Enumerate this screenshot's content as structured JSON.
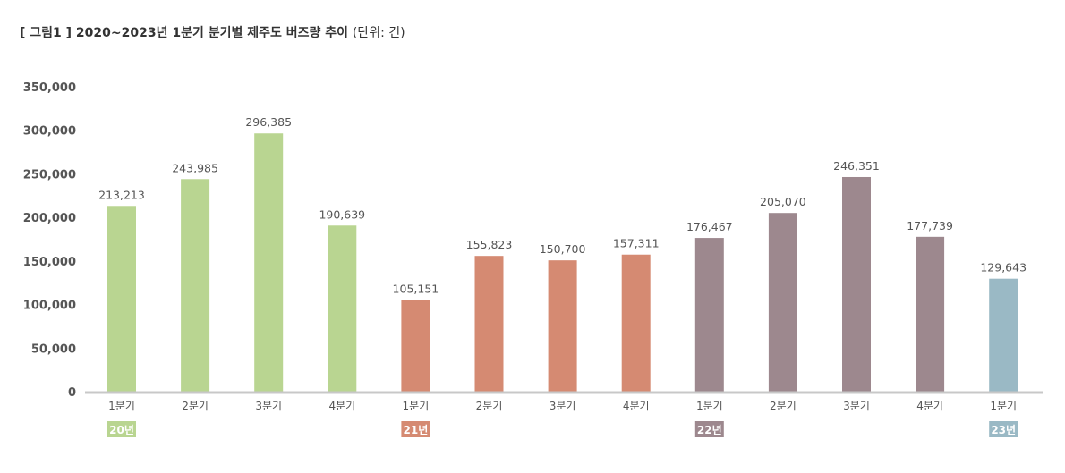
{
  "title": {
    "main": "[ 그림1 ] 2020~2023년 1분기 분기별 제주도 버즈량 추이",
    "unit": "(단위: 건)"
  },
  "colors": {
    "20년": "#b9d591",
    "21년": "#d58a72",
    "22년": "#9d888e",
    "23년": "#9ab9c5",
    "axis": "#c8c8c8"
  },
  "chart_data": {
    "type": "bar",
    "categories": [
      "1분기",
      "2분기",
      "3분기",
      "4분기",
      "1분기",
      "2분기",
      "3분기",
      "4분기",
      "1분기",
      "2분기",
      "3분기",
      "4분기",
      "1분기"
    ],
    "values": [
      213213,
      243985,
      296385,
      190639,
      105151,
      155823,
      150700,
      157311,
      176467,
      205070,
      246351,
      177739,
      129643
    ],
    "value_labels": [
      "213,213",
      "243,985",
      "296,385",
      "190,639",
      "105,151",
      "155,823",
      "150,700",
      "157,311",
      "176,467",
      "205,070",
      "246,351",
      "177,739",
      "129,643"
    ],
    "groups": [
      "20년",
      "20년",
      "20년",
      "20년",
      "21년",
      "21년",
      "21년",
      "21년",
      "22년",
      "22년",
      "22년",
      "22년",
      "23년"
    ],
    "year_labels": [
      {
        "label": "20년",
        "index": 0
      },
      {
        "label": "21년",
        "index": 4
      },
      {
        "label": "22년",
        "index": 8
      },
      {
        "label": "23년",
        "index": 12
      }
    ],
    "yticks": [
      0,
      50000,
      100000,
      150000,
      200000,
      250000,
      300000,
      350000
    ],
    "ytick_labels": [
      "0",
      "50,000",
      "100,000",
      "150,000",
      "200,000",
      "250,000",
      "300,000",
      "350,000"
    ],
    "ylim": [
      0,
      350000
    ],
    "grid": false
  }
}
